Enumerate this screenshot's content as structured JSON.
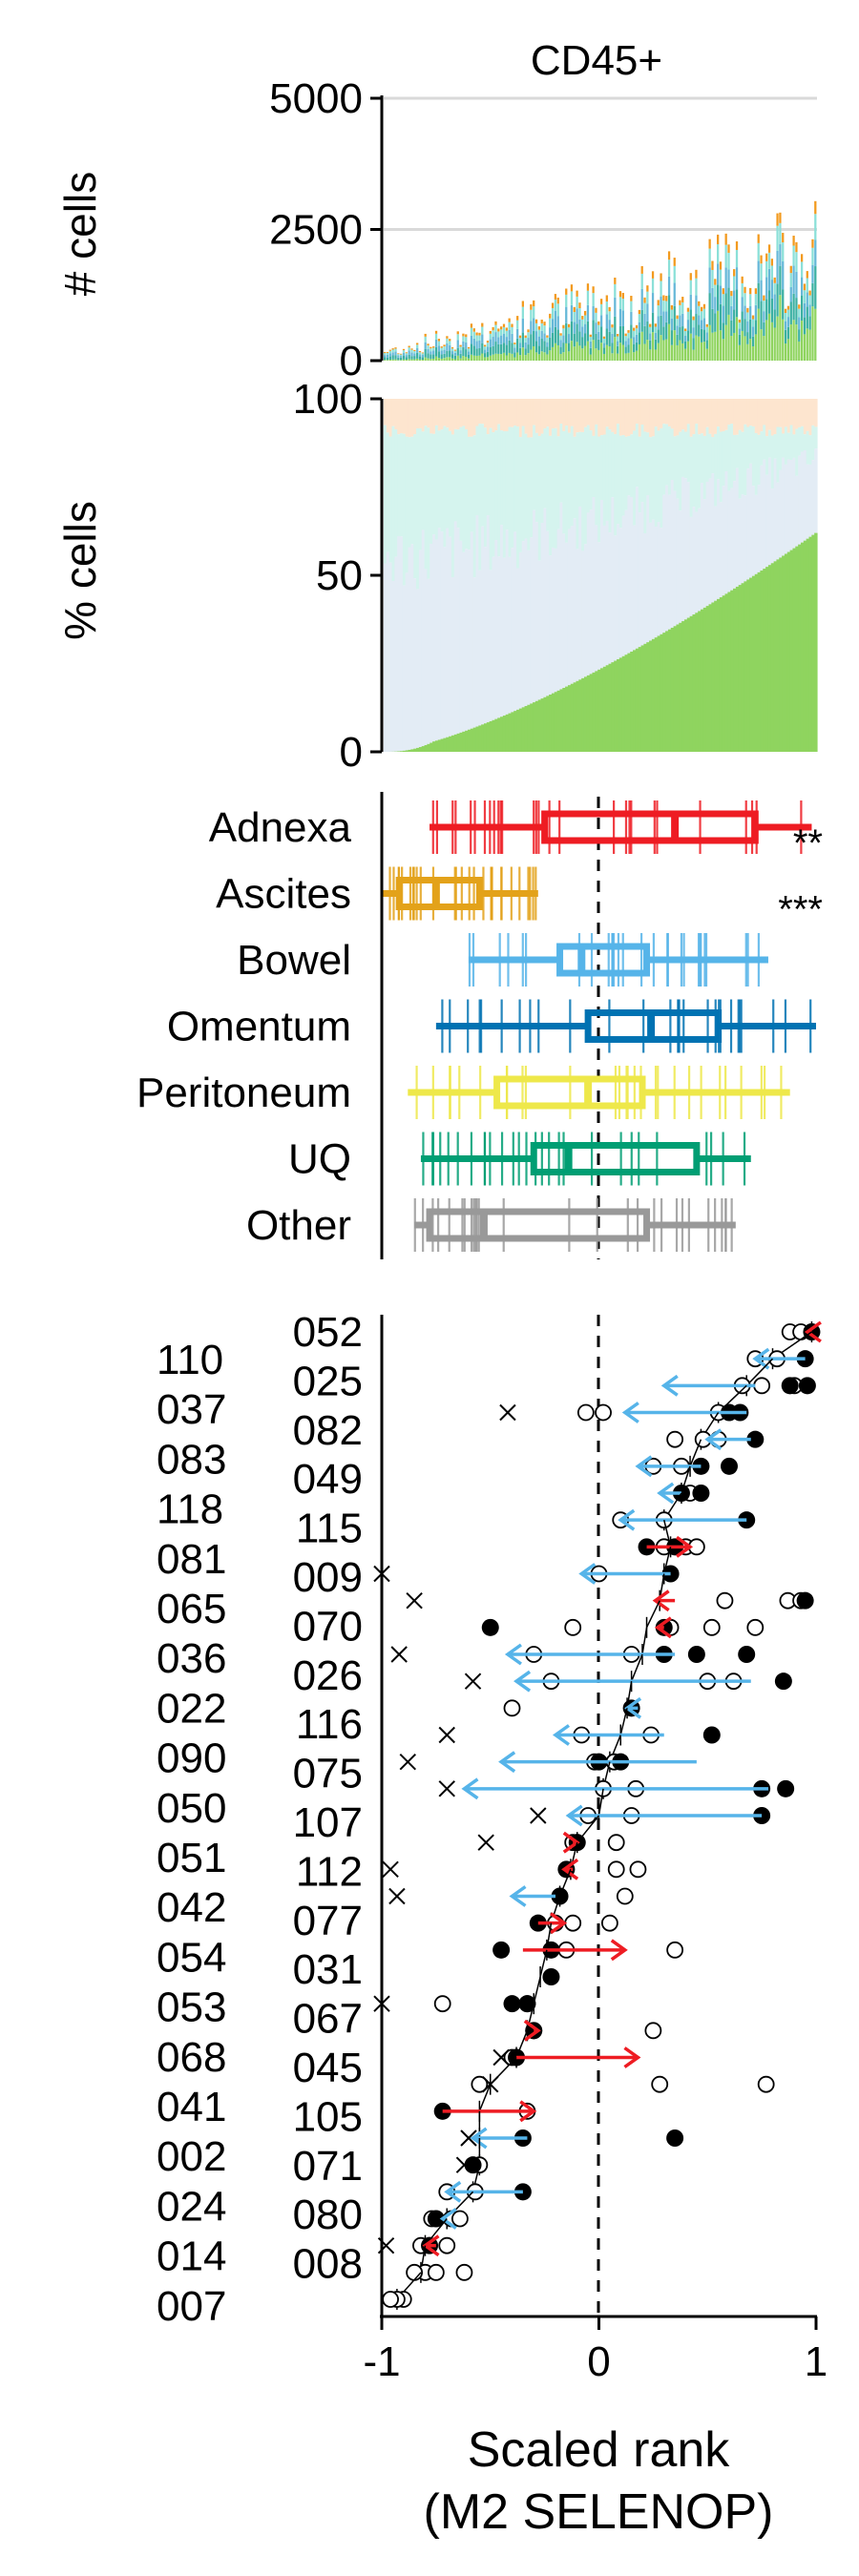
{
  "chart_data": [
    {
      "panel": "counts",
      "type": "bar",
      "title": "CD45+",
      "ylabel": "# cells",
      "ylim": [
        0,
        5000
      ],
      "yticks": [
        0,
        2500,
        5000
      ],
      "grid": "horizontal",
      "n_samples": 160,
      "stacked": true,
      "colors": [
        "#8fd45f",
        "#3bb0a2",
        "#66b8d8",
        "#8be0d8",
        "#f29a1e"
      ],
      "description_values": "per-sample total cell counts rising roughly from ~300 to ~3300 left to right"
    },
    {
      "panel": "fractions",
      "type": "area",
      "ylabel": "% cells",
      "ylim": [
        0,
        100
      ],
      "yticks": [
        0,
        50,
        100
      ],
      "n_samples": 160,
      "series": [
        {
          "name": "",
          "color": "#8fd45f",
          "start": 0,
          "end": 62
        },
        {
          "name": "",
          "color": "#e3ecf5"
        },
        {
          "name": "",
          "color": "#d5f4ee"
        },
        {
          "name": "",
          "color": "#fde5cf"
        }
      ]
    },
    {
      "panel": "site_boxplots",
      "type": "box",
      "xlim": [
        -1,
        1
      ],
      "reference_line": 0,
      "categories": [
        "Adnexa",
        "Ascites",
        "Bowel",
        "Omentum",
        "Peritoneum",
        "UQ",
        "Other"
      ],
      "colors": [
        "#ee1c23",
        "#e3a21a",
        "#56b4e9",
        "#0072b2",
        "#eee84a",
        "#009e73",
        "#999999"
      ],
      "boxes": [
        {
          "whisker_low": -0.78,
          "q1": -0.25,
          "median": 0.35,
          "q3": 0.72,
          "whisker_high": 0.98
        },
        {
          "whisker_low": -1.0,
          "q1": -0.92,
          "median": -0.75,
          "q3": -0.55,
          "whisker_high": -0.28
        },
        {
          "whisker_low": -0.6,
          "q1": -0.18,
          "median": -0.08,
          "q3": 0.22,
          "whisker_high": 0.78
        },
        {
          "whisker_low": -0.75,
          "q1": -0.05,
          "median": 0.24,
          "q3": 0.55,
          "whisker_high": 1.0
        },
        {
          "whisker_low": -0.88,
          "q1": -0.47,
          "median": -0.05,
          "q3": 0.2,
          "whisker_high": 0.88
        },
        {
          "whisker_low": -0.82,
          "q1": -0.3,
          "median": -0.14,
          "q3": 0.45,
          "whisker_high": 0.7
        },
        {
          "whisker_low": -0.85,
          "q1": -0.78,
          "median": -0.53,
          "q3": 0.22,
          "whisker_high": 0.63
        }
      ],
      "annotations": [
        {
          "category": "Adnexa",
          "text": "**"
        },
        {
          "category": "Ascites",
          "text": "***"
        }
      ]
    },
    {
      "panel": "patient_ranks",
      "type": "scatter",
      "xlabel_line1": "Scaled rank",
      "xlabel_line2": "(M2 SELENOP)",
      "xlim": [
        -1,
        1
      ],
      "xticks": [
        -1,
        0,
        1
      ],
      "xtick_labels": [
        "-1",
        "0",
        "1"
      ],
      "reference_line": 0,
      "row_labels_right": [
        "052",
        "025",
        "082",
        "049",
        "115",
        "009",
        "070",
        "026",
        "116",
        "075",
        "107",
        "112",
        "077",
        "031",
        "067",
        "045",
        "105",
        "071",
        "080",
        "008"
      ],
      "row_labels_left": [
        "110",
        "037",
        "083",
        "118",
        "081",
        "065",
        "036",
        "022",
        "090",
        "050",
        "051",
        "042",
        "054",
        "053",
        "068",
        "041",
        "002",
        "024",
        "014",
        "007"
      ],
      "marker_key": {
        "filled": "filled circle",
        "open": "open circle",
        "cross": "x mark"
      },
      "arrow_colors": {
        "blue": "#56b4e9",
        "red": "#ee1c23"
      },
      "rows": [
        {
          "median": 0.98,
          "filled": [
            0.98
          ],
          "open": [
            0.88,
            0.93
          ],
          "cross": [],
          "arrow": [
            0.98,
            0.96,
            "red"
          ]
        },
        {
          "median": 0.8,
          "filled": [
            0.95
          ],
          "open": [
            0.72,
            0.82
          ],
          "cross": [],
          "arrow": [
            0.95,
            0.72,
            "blue"
          ]
        },
        {
          "median": 0.68,
          "filled": [
            0.96,
            0.88
          ],
          "open": [
            0.66,
            0.75,
            0.9
          ],
          "cross": [],
          "arrow": [
            0.72,
            0.3,
            "blue"
          ]
        },
        {
          "median": 0.55,
          "filled": [
            0.65,
            0.6
          ],
          "open": [
            0.55,
            0.02,
            -0.06
          ],
          "cross": [
            -0.42
          ],
          "arrow": [
            0.68,
            0.12,
            "blue"
          ]
        },
        {
          "median": 0.47,
          "filled": [
            0.72
          ],
          "open": [
            0.55,
            0.48,
            0.35
          ],
          "cross": [],
          "arrow": [
            0.7,
            0.5,
            "blue"
          ]
        },
        {
          "median": 0.42,
          "filled": [
            0.6,
            0.47
          ],
          "open": [
            0.38,
            0.25
          ],
          "cross": [],
          "arrow": [
            0.47,
            0.18,
            "blue"
          ]
        },
        {
          "median": 0.38,
          "filled": [
            0.47,
            0.38
          ],
          "open": [
            0.42
          ],
          "cross": [],
          "arrow": [
            0.38,
            0.28,
            "blue"
          ]
        },
        {
          "median": 0.3,
          "filled": [
            0.68
          ],
          "open": [
            0.1,
            0.3
          ],
          "cross": [],
          "arrow": [
            0.68,
            0.1,
            "blue"
          ]
        },
        {
          "median": 0.33,
          "filled": [
            0.22,
            0.35
          ],
          "open": [
            0.3,
            0.4,
            0.45
          ],
          "cross": [],
          "arrow": [
            0.22,
            0.42,
            "red"
          ]
        },
        {
          "median": 0.3,
          "filled": [
            0.33
          ],
          "open": [
            0.0
          ],
          "cross": [
            -1.0
          ],
          "arrow": [
            0.33,
            -0.08,
            "blue"
          ]
        },
        {
          "median": 0.28,
          "filled": [
            0.95
          ],
          "open": [
            0.87,
            0.93,
            0.58
          ],
          "cross": [
            -0.85
          ],
          "arrow": [
            0.35,
            0.26,
            "red"
          ]
        },
        {
          "median": 0.22,
          "filled": [
            -0.5,
            0.3
          ],
          "open": [
            -0.12,
            0.33,
            0.52,
            0.72
          ],
          "cross": [],
          "arrow": [
            0.3,
            0.27,
            "red"
          ]
        },
        {
          "median": 0.2,
          "filled": [
            0.3,
            0.45,
            0.68
          ],
          "open": [
            -0.3,
            0.15
          ],
          "cross": [
            -0.92
          ],
          "arrow": [
            0.35,
            -0.42,
            "blue"
          ]
        },
        {
          "median": 0.15,
          "filled": [
            0.85
          ],
          "open": [
            -0.22,
            0.5,
            0.62
          ],
          "cross": [
            -0.58
          ],
          "arrow": [
            0.7,
            -0.38,
            "blue"
          ]
        },
        {
          "median": 0.13,
          "filled": [
            0.15
          ],
          "open": [
            -0.4
          ],
          "cross": [],
          "arrow": [
            0.18,
            0.13,
            "blue"
          ]
        },
        {
          "median": 0.1,
          "filled": [
            0.52
          ],
          "open": [
            -0.08,
            0.24
          ],
          "cross": [
            -0.7
          ],
          "arrow": [
            0.3,
            -0.2,
            "blue"
          ]
        },
        {
          "median": 0.05,
          "filled": [
            0.0,
            0.1
          ],
          "open": [
            -0.02,
            0.07
          ],
          "cross": [
            -0.88
          ],
          "arrow": [
            0.45,
            -0.45,
            "blue"
          ]
        },
        {
          "median": 0.02,
          "filled": [
            0.86,
            0.75
          ],
          "open": [
            0.02,
            0.17
          ],
          "cross": [
            -0.7
          ],
          "arrow": [
            0.78,
            -0.62,
            "blue"
          ]
        },
        {
          "median": 0.0,
          "filled": [
            0.75
          ],
          "open": [
            -0.05,
            0.15
          ],
          "cross": [
            -0.28
          ],
          "arrow": [
            0.75,
            -0.14,
            "blue"
          ]
        },
        {
          "median": -0.1,
          "filled": [
            -0.1
          ],
          "open": [
            -0.12,
            0.08
          ],
          "cross": [
            -0.52
          ],
          "arrow": [
            -0.12,
            -0.1,
            "red"
          ]
        }
      ],
      "notes_lower_block": [
        {
          "median": -0.13,
          "filled": [
            -0.15
          ],
          "open": [
            0.08,
            0.18
          ],
          "cross": [
            -0.96
          ],
          "arrow": [
            -0.12,
            -0.16,
            "red"
          ]
        },
        {
          "median": -0.18,
          "filled": [
            -0.18
          ],
          "open": [
            0.12
          ],
          "cross": [
            -0.93
          ],
          "arrow": [
            -0.2,
            -0.4,
            "blue"
          ]
        },
        {
          "median": -0.22,
          "filled": [
            -0.28
          ],
          "open": [
            -0.2,
            -0.12,
            0.05
          ],
          "cross": [],
          "arrow": [
            -0.28,
            -0.16,
            "red"
          ]
        },
        {
          "median": -0.24,
          "filled": [
            -0.45,
            -0.22
          ],
          "open": [
            -0.15,
            0.35
          ],
          "cross": [],
          "arrow": [
            -0.35,
            0.12,
            "red"
          ]
        },
        {
          "median": -0.27,
          "filled": [
            -0.22
          ],
          "open": [],
          "cross": [],
          "arrow": null
        },
        {
          "median": -0.3,
          "filled": [
            -0.4,
            -0.33
          ],
          "open": [
            -0.72,
            -0.33
          ],
          "cross": [
            -1.0
          ],
          "arrow": null
        },
        {
          "median": -0.33,
          "filled": [
            -0.3
          ],
          "open": [
            -0.3,
            0.25
          ],
          "cross": [],
          "arrow": [
            -0.3,
            -0.28,
            "red"
          ]
        },
        {
          "median": -0.38,
          "filled": [
            -0.38
          ],
          "open": [
            -0.4
          ],
          "cross": [
            -0.45
          ],
          "arrow": [
            -0.38,
            0.18,
            "red"
          ]
        },
        {
          "median": -0.5,
          "filled": [],
          "open": [
            -0.55,
            0.28,
            0.77
          ],
          "cross": [
            -0.5
          ],
          "arrow": null
        },
        {
          "median": -0.55,
          "filled": [
            -0.72
          ],
          "open": [
            -0.33
          ],
          "cross": [],
          "arrow": [
            -0.72,
            -0.3,
            "red"
          ]
        },
        {
          "median": -0.55,
          "filled": [
            -0.35,
            0.35
          ],
          "open": [],
          "cross": [
            -0.6
          ],
          "arrow": [
            -0.33,
            -0.58,
            "blue"
          ]
        },
        {
          "median": -0.55,
          "filled": [
            -0.58
          ],
          "open": [
            -0.55
          ],
          "cross": [
            -0.62
          ],
          "arrow": null
        },
        {
          "median": -0.58,
          "filled": [
            -0.35
          ],
          "open": [
            -0.57,
            -0.7
          ],
          "cross": [],
          "arrow": [
            -0.35,
            -0.7,
            "blue"
          ]
        },
        {
          "median": -0.7,
          "filled": [
            -0.75
          ],
          "open": [
            -0.77,
            -0.68,
            -0.64
          ],
          "cross": [],
          "arrow": [
            -0.7,
            -0.72,
            "blue"
          ]
        },
        {
          "median": -0.8,
          "filled": [
            -0.78
          ],
          "open": [
            -0.82,
            -0.7
          ],
          "cross": [
            -0.98
          ],
          "arrow": [
            -0.75,
            -0.8,
            "red"
          ]
        },
        {
          "median": -0.82,
          "filled": [],
          "open": [
            -0.8,
            -0.85,
            -0.75,
            -0.62
          ],
          "cross": [],
          "arrow": null
        },
        {
          "median": -0.93,
          "filled": [],
          "open": [
            -0.9,
            -0.93,
            -0.96
          ],
          "cross": [],
          "arrow": null
        }
      ]
    }
  ]
}
